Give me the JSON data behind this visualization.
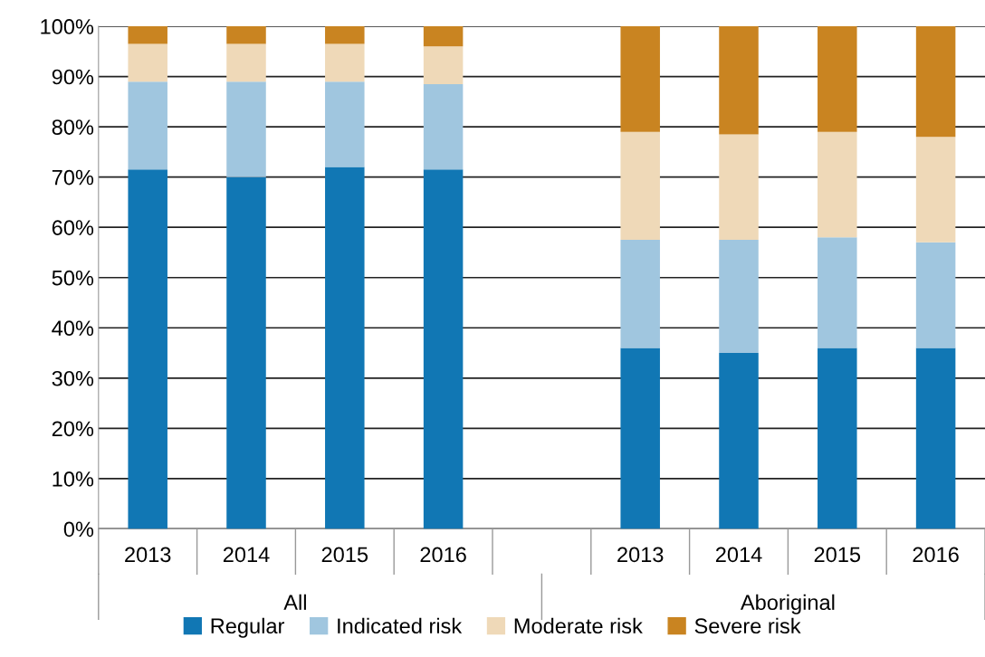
{
  "chart_data": {
    "type": "bar",
    "stacked": true,
    "categories": [
      "2013",
      "2014",
      "2015",
      "2016",
      null,
      "2013",
      "2014",
      "2015",
      "2016"
    ],
    "series": [
      {
        "name": "Regular",
        "color": "#1177b4",
        "values": [
          71.5,
          70,
          72,
          71.5,
          null,
          36,
          35,
          36,
          36
        ]
      },
      {
        "name": "Indicated risk",
        "color": "#a0c6df",
        "values": [
          17.5,
          19,
          17,
          17,
          null,
          21.5,
          22.5,
          22,
          21
        ]
      },
      {
        "name": "Moderate risk",
        "color": "#efd9b8",
        "values": [
          7.5,
          7.5,
          7.5,
          7.5,
          null,
          21.5,
          21,
          21,
          21
        ]
      },
      {
        "name": "Severe risk",
        "color": "#c98421",
        "values": [
          3.5,
          3.5,
          3.5,
          4,
          null,
          21,
          21.5,
          21,
          22
        ]
      }
    ],
    "ylim": [
      0,
      100
    ],
    "yticks": [
      {
        "value": 0,
        "label": "0%"
      },
      {
        "value": 10,
        "label": "10%"
      },
      {
        "value": 20,
        "label": "20%"
      },
      {
        "value": 30,
        "label": "30%"
      },
      {
        "value": 40,
        "label": "40%"
      },
      {
        "value": 50,
        "label": "50%"
      },
      {
        "value": 60,
        "label": "60%"
      },
      {
        "value": 70,
        "label": "70%"
      },
      {
        "value": 80,
        "label": "80%"
      },
      {
        "value": 90,
        "label": "90%"
      },
      {
        "value": 100,
        "label": "100%"
      }
    ],
    "grid": "y",
    "legend": "bottom",
    "annotations": [
      "All",
      "Aboriginal"
    ]
  }
}
